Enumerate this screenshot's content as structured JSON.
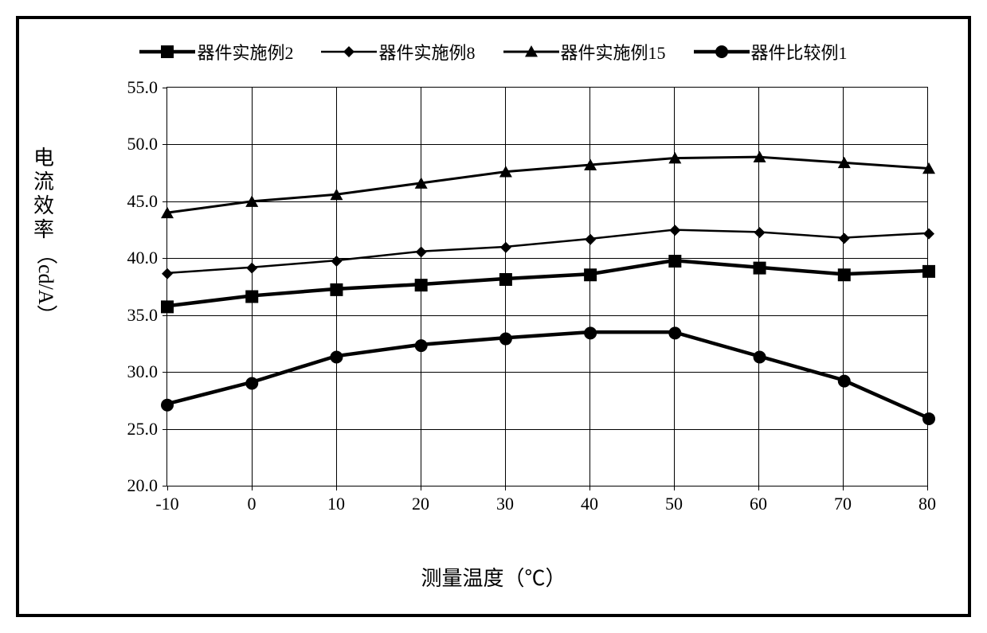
{
  "chart": {
    "type": "line",
    "background_color": "#ffffff",
    "border_color": "#000000",
    "border_width": 4,
    "grid_color": "#000000",
    "x_axis": {
      "title": "测量温度（℃）",
      "ticks": [
        -10,
        0,
        10,
        20,
        30,
        40,
        50,
        60,
        70,
        80
      ],
      "xlim": [
        -10,
        80
      ],
      "title_fontsize": 26,
      "tick_fontsize": 22
    },
    "y_axis": {
      "title_vertical": "电流效率",
      "title_unit": "（cd/A）",
      "ticks": [
        "20.0",
        "25.0",
        "30.0",
        "35.0",
        "40.0",
        "45.0",
        "50.0",
        "55.0"
      ],
      "ylim": [
        20.0,
        55.0
      ],
      "ytick_step": 5.0,
      "title_fontsize": 26,
      "tick_fontsize": 22
    },
    "legend": {
      "position": "top",
      "fontsize": 22,
      "items": [
        {
          "label": "器件实施例2",
          "marker": "square",
          "color": "#000000",
          "line_width": 4.5,
          "marker_size": 16
        },
        {
          "label": "器件实施例8",
          "marker": "diamond",
          "color": "#000000",
          "line_width": 2.5,
          "marker_size": 14
        },
        {
          "label": "器件实施例15",
          "marker": "triangle",
          "color": "#000000",
          "line_width": 3,
          "marker_size": 16
        },
        {
          "label": "器件比较例1",
          "marker": "circle",
          "color": "#000000",
          "line_width": 4.5,
          "marker_size": 16
        }
      ]
    },
    "series": [
      {
        "name": "器件实施例2",
        "marker": "square",
        "color": "#000000",
        "line_width": 4.5,
        "marker_size": 16,
        "x": [
          -10,
          0,
          10,
          20,
          30,
          40,
          50,
          60,
          70,
          80
        ],
        "y": [
          35.8,
          36.7,
          37.3,
          37.7,
          38.2,
          38.6,
          39.8,
          39.2,
          38.6,
          38.9
        ]
      },
      {
        "name": "器件实施例8",
        "marker": "diamond",
        "color": "#000000",
        "line_width": 2.5,
        "marker_size": 14,
        "x": [
          -10,
          0,
          10,
          20,
          30,
          40,
          50,
          60,
          70,
          80
        ],
        "y": [
          38.7,
          39.2,
          39.8,
          40.6,
          41.0,
          41.7,
          42.5,
          42.3,
          41.8,
          42.2
        ]
      },
      {
        "name": "器件实施例15",
        "marker": "triangle",
        "color": "#000000",
        "line_width": 3,
        "marker_size": 16,
        "x": [
          -10,
          0,
          10,
          20,
          30,
          40,
          50,
          60,
          70,
          80
        ],
        "y": [
          44.0,
          45.0,
          45.6,
          46.6,
          47.6,
          48.2,
          48.8,
          48.9,
          48.4,
          47.9
        ]
      },
      {
        "name": "器件比较例1",
        "marker": "circle",
        "color": "#000000",
        "line_width": 4.5,
        "marker_size": 16,
        "x": [
          -10,
          0,
          10,
          20,
          30,
          40,
          50,
          60,
          70,
          80
        ],
        "y": [
          27.2,
          29.1,
          31.4,
          32.4,
          33.0,
          33.5,
          33.5,
          31.4,
          29.3,
          26.0
        ]
      }
    ]
  }
}
